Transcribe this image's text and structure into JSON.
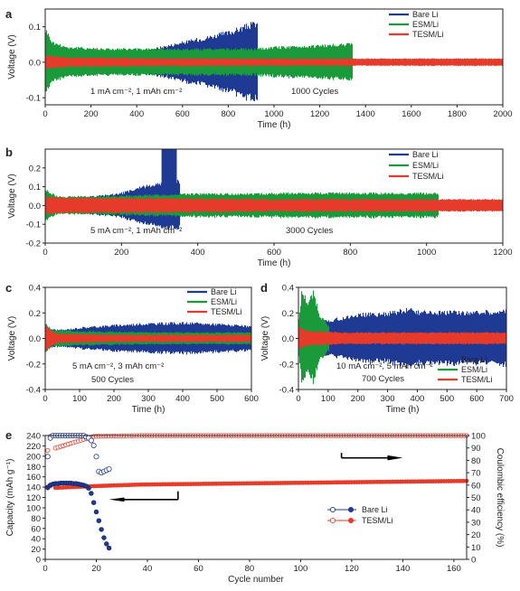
{
  "colors": {
    "bare_li": "#1f3a93",
    "esm_li": "#1a9a3a",
    "tesm_li": "#e63b2a",
    "axis": "#231f20"
  },
  "chart_data": [
    {
      "panel": "a",
      "type": "line",
      "xlabel": "Time (h)",
      "ylabel": "Voltage (V)",
      "xlim": [
        0,
        2000
      ],
      "ylim": [
        -0.12,
        0.15
      ],
      "xticks": [
        0,
        200,
        400,
        600,
        800,
        1000,
        1200,
        1400,
        1600,
        1800,
        2000
      ],
      "yticks": [
        -0.1,
        0.0,
        0.1
      ],
      "ytick_labels": [
        "-0.1",
        "0.0",
        "0.1"
      ],
      "legend_position": "top-right",
      "annotations": [
        "1 mA cm⁻², 1 mAh cm⁻²",
        "1000 Cycles"
      ],
      "series": [
        {
          "name": "Bare Li",
          "kind": "band",
          "x": [
            0,
            100,
            300,
            420,
            500,
            600,
            700,
            800,
            880,
            925
          ],
          "amplitude": [
            0.015,
            0.02,
            0.025,
            0.032,
            0.045,
            0.06,
            0.075,
            0.09,
            0.11,
            0.12
          ]
        },
        {
          "name": "ESM/Li",
          "kind": "band",
          "x": [
            0,
            30,
            100,
            300,
            600,
            925,
            1000,
            1200,
            1340
          ],
          "amplitude": [
            0.1,
            0.06,
            0.045,
            0.04,
            0.04,
            0.04,
            0.045,
            0.05,
            0.055
          ]
        },
        {
          "name": "TESM/Li",
          "kind": "band",
          "x": [
            0,
            100,
            500,
            1000,
            1500,
            2000
          ],
          "amplitude": [
            0.02,
            0.014,
            0.012,
            0.011,
            0.011,
            0.011
          ]
        }
      ]
    },
    {
      "panel": "b",
      "type": "line",
      "xlabel": "Time (h)",
      "ylabel": "Voltage (V)",
      "xlim": [
        0,
        1200
      ],
      "ylim": [
        -0.2,
        0.3
      ],
      "xticks": [
        0,
        200,
        400,
        600,
        800,
        1000,
        1200
      ],
      "yticks": [
        -0.2,
        -0.1,
        0.0,
        0.1,
        0.2
      ],
      "ytick_labels": [
        "-0.2",
        "-0.1",
        "0.0",
        "0.1",
        "0.2"
      ],
      "legend_position": "top-right",
      "annotations": [
        "5 mA cm⁻², 1 mAh cm⁻²",
        "3000 Cycles"
      ],
      "series": [
        {
          "name": "Bare Li",
          "kind": "band",
          "x": [
            0,
            20,
            100,
            200,
            260,
            305,
            345,
            350
          ],
          "amplitude": [
            0.08,
            0.04,
            0.045,
            0.07,
            0.11,
            0.13,
            0.14,
            0.14
          ],
          "spike": {
            "x": [
              305,
              345
            ],
            "top": 0.3
          }
        },
        {
          "name": "ESM/Li",
          "kind": "band",
          "x": [
            0,
            30,
            200,
            350,
            700,
            1000,
            1030
          ],
          "amplitude": [
            0.09,
            0.05,
            0.055,
            0.065,
            0.07,
            0.07,
            0.07
          ]
        },
        {
          "name": "TESM/Li",
          "kind": "band",
          "x": [
            0,
            30,
            300,
            600,
            900,
            1200
          ],
          "amplitude": [
            0.05,
            0.045,
            0.04,
            0.035,
            0.035,
            0.035
          ]
        }
      ]
    },
    {
      "panel": "c",
      "type": "line",
      "xlabel": "Time (h)",
      "ylabel": "Voltage (V)",
      "xlim": [
        0,
        600
      ],
      "ylim": [
        -0.4,
        0.4
      ],
      "xticks": [
        0,
        100,
        200,
        300,
        400,
        500,
        600
      ],
      "yticks": [
        -0.4,
        -0.2,
        0.0,
        0.2,
        0.4
      ],
      "ytick_labels": [
        "-0.4",
        "-0.2",
        "0.0",
        "0.2",
        "0.4"
      ],
      "legend_position": "top-right",
      "annotations": [
        "5 mA cm⁻², 3 mAh cm⁻²",
        "500 Cycles"
      ],
      "series": [
        {
          "name": "Bare Li",
          "kind": "band",
          "x": [
            0,
            50,
            100,
            200,
            300,
            400,
            500,
            600
          ],
          "amplitude": [
            0.08,
            0.07,
            0.09,
            0.11,
            0.125,
            0.13,
            0.12,
            0.1
          ]
        },
        {
          "name": "ESM/Li",
          "kind": "band",
          "x": [
            0,
            20,
            100,
            300,
            600
          ],
          "amplitude": [
            0.12,
            0.07,
            0.06,
            0.05,
            0.05
          ]
        },
        {
          "name": "TESM/Li",
          "kind": "band",
          "x": [
            0,
            30,
            200,
            600
          ],
          "amplitude": [
            0.1,
            0.04,
            0.03,
            0.03
          ]
        }
      ]
    },
    {
      "panel": "d",
      "type": "line",
      "xlabel": "Time (h)",
      "ylabel": "Voltage (V)",
      "xlim": [
        0,
        700
      ],
      "ylim": [
        -0.4,
        0.4
      ],
      "xticks": [
        0,
        100,
        200,
        300,
        400,
        500,
        600,
        700
      ],
      "yticks": [
        -0.4,
        -0.2,
        0.0,
        0.2,
        0.4
      ],
      "ytick_labels": [
        "-0.4",
        "-0.2",
        "0.0",
        "0.2",
        "0.4"
      ],
      "legend_position": "bottom-right",
      "annotations": [
        "10 mA cm⁻², 5 mAh cm⁻²",
        "700 Cycles"
      ],
      "series": [
        {
          "name": "Bare Li",
          "kind": "band",
          "x": [
            0,
            50,
            100,
            160,
            200,
            300,
            380,
            400,
            500,
            600,
            700
          ],
          "amplitude": [
            0.12,
            0.14,
            0.15,
            0.18,
            0.2,
            0.21,
            0.25,
            0.22,
            0.22,
            0.22,
            0.23
          ]
        },
        {
          "name": "ESM/Li",
          "kind": "band",
          "x": [
            0,
            10,
            30,
            50,
            70,
            100
          ],
          "amplitude": [
            0.15,
            0.4,
            0.3,
            0.38,
            0.2,
            0.1
          ]
        },
        {
          "name": "TESM/Li",
          "kind": "band",
          "x": [
            0,
            30,
            150,
            700
          ],
          "amplitude": [
            0.1,
            0.06,
            0.05,
            0.05
          ]
        }
      ]
    },
    {
      "panel": "e",
      "type": "scatter",
      "xlabel": "Cycle number",
      "ylabel": "Capacity (mAh g⁻¹)",
      "y2label": "Coulombic efficiency (%)",
      "xlim": [
        0,
        165
      ],
      "ylim": [
        0,
        240
      ],
      "y2lim": [
        0,
        100
      ],
      "xticks": [
        0,
        20,
        40,
        60,
        80,
        100,
        120,
        140,
        160
      ],
      "yticks": [
        0,
        20,
        40,
        60,
        80,
        100,
        120,
        140,
        160,
        180,
        200,
        220,
        240
      ],
      "y2ticks": [
        0,
        10,
        20,
        30,
        40,
        50,
        60,
        70,
        80,
        90,
        100
      ],
      "legend_position": "center-right",
      "series": [
        {
          "name": "Bare Li",
          "role": "capacity",
          "x": [
            1,
            2,
            3,
            4,
            5,
            6,
            7,
            8,
            9,
            10,
            11,
            12,
            13,
            14,
            15,
            16,
            17,
            18,
            19,
            20,
            21,
            22,
            23,
            24,
            25
          ],
          "values": [
            140,
            144,
            146,
            147,
            147,
            148,
            148,
            148,
            148,
            148,
            147,
            147,
            146,
            145,
            144,
            142,
            138,
            128,
            110,
            92,
            75,
            58,
            42,
            30,
            22
          ]
        },
        {
          "name": "Bare Li",
          "role": "coulombic_efficiency",
          "x": [
            1,
            2,
            3,
            4,
            5,
            6,
            7,
            8,
            9,
            10,
            11,
            12,
            13,
            14,
            15,
            16,
            17,
            18,
            19,
            20,
            21,
            22,
            23,
            24,
            25
          ],
          "values": [
            83,
            98,
            100,
            100,
            100,
            100,
            100,
            100,
            100,
            100,
            100,
            100,
            100,
            100,
            100,
            99,
            98,
            96,
            92,
            83,
            71,
            70,
            71,
            72,
            73
          ]
        },
        {
          "name": "TESM/Li",
          "role": "capacity",
          "x_start": 1,
          "x_end": 165,
          "values": [
            138,
            142,
            145,
            146,
            147,
            148,
            149,
            150,
            151,
            152
          ]
        },
        {
          "name": "TESM/Li",
          "role": "coulombic_efficiency",
          "x_start": 1,
          "x_end": 165,
          "values": [
            88,
            99.5,
            100,
            100,
            100,
            100,
            100,
            100,
            100,
            100
          ]
        }
      ]
    }
  ]
}
